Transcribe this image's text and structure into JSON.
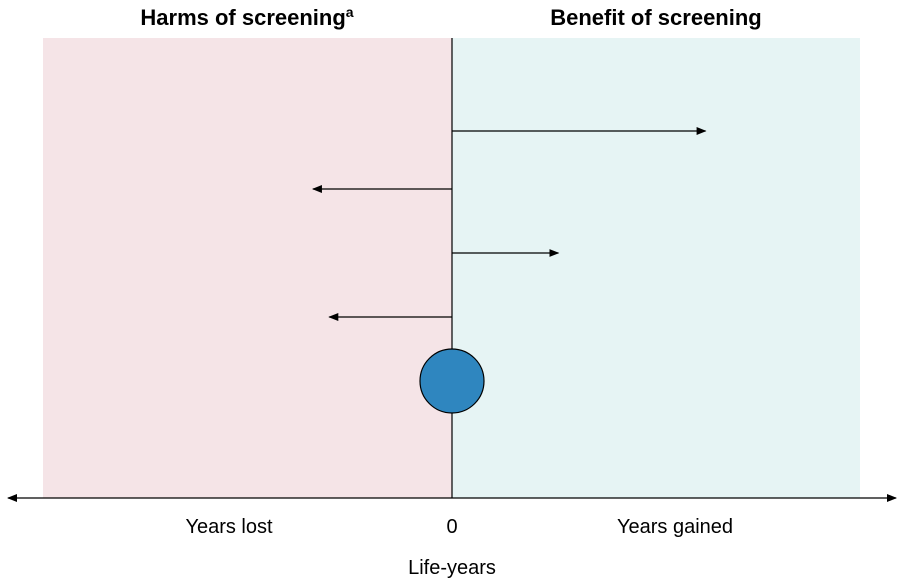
{
  "headings": {
    "harms": "Harms of screening",
    "harms_superscript": "a",
    "benefit": "Benefit of screening"
  },
  "axis": {
    "left_label": "Years lost",
    "zero_label": "0",
    "right_label": "Years gained",
    "title": "Life-years"
  },
  "colors": {
    "harms_region": "#f5e4e7",
    "benefit_region": "#e6f4f4",
    "circle_fill": "#2f86bf",
    "line": "#000000"
  },
  "arrows": [
    {
      "direction": "right",
      "magnitude": 0.62
    },
    {
      "direction": "left",
      "magnitude": 0.34
    },
    {
      "direction": "right",
      "magnitude": 0.26
    },
    {
      "direction": "left",
      "magnitude": 0.3
    }
  ],
  "net_marker": {
    "value": 0
  }
}
